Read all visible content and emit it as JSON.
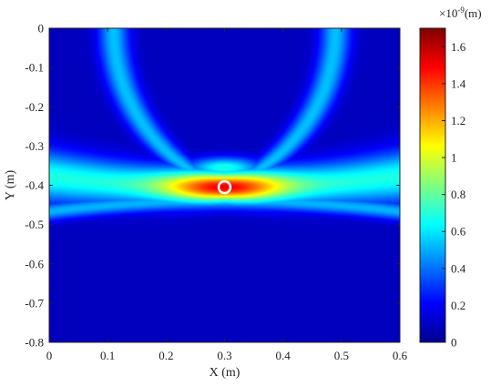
{
  "chart_data": {
    "type": "heatmap",
    "title": "",
    "xlabel": "X (m)",
    "ylabel": "Y (m)",
    "xlim": [
      0,
      0.6
    ],
    "ylim": [
      -0.8,
      0
    ],
    "x_ticks": [
      "0",
      "0.1",
      "0.2",
      "0.3",
      "0.4",
      "0.5",
      "0.6"
    ],
    "y_ticks": [
      "0",
      "-0.1",
      "-0.2",
      "-0.3",
      "-0.4",
      "-0.5",
      "-0.6",
      "-0.7",
      "-0.8"
    ],
    "colorbar": {
      "exponent_label": "×10",
      "exponent_power": "-9",
      "unit_label": "(m)",
      "range": [
        0,
        1.7
      ],
      "ticks": [
        "0",
        "0.2",
        "0.4",
        "0.6",
        "0.8",
        "1",
        "1.2",
        "1.4",
        "1.6"
      ],
      "colormap": "jet"
    },
    "grid": false,
    "peak": {
      "x": 0.3,
      "y": -0.405,
      "value": 1.7
    },
    "features": [
      {
        "name": "main-arc",
        "apex_y": -0.42,
        "edge_y": -0.3,
        "peak_value": 1.7
      },
      {
        "name": "lower-arc",
        "apex_y": -0.44,
        "edge_y": -0.52,
        "peak_value": 0.5
      },
      {
        "name": "left-upper-arc",
        "x_top": 0.11,
        "peak_value": 0.5
      },
      {
        "name": "right-upper-arc",
        "x_top": 0.49,
        "peak_value": 0.5
      }
    ],
    "marker": {
      "shape": "circle",
      "x": 0.3,
      "y": -0.405,
      "color": "#ffffff"
    }
  }
}
